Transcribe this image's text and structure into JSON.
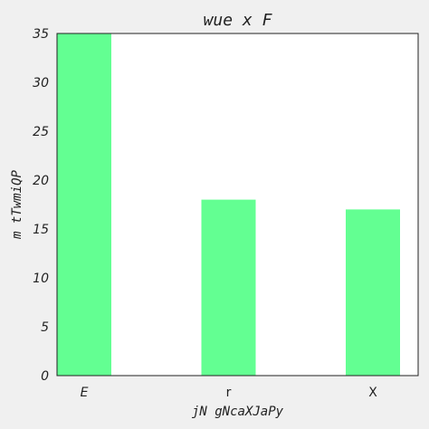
{
  "chart_data": {
    "type": "bar",
    "title": "wue x  F",
    "xlabel": "jN gNcaXJaPy",
    "ylabel": "m tTwmiQP",
    "categories": [
      "E",
      "r",
      "X"
    ],
    "values": [
      35,
      18,
      17
    ],
    "ylim": [
      0,
      35
    ],
    "yticks": [
      0,
      5,
      10,
      15,
      20,
      25,
      30,
      35
    ],
    "grid": false,
    "legend": false,
    "colors": {
      "bar": "#63ff92",
      "plot_background": "#ffffff",
      "figure_background": "#f0f0f0",
      "axis": "#222222"
    }
  }
}
